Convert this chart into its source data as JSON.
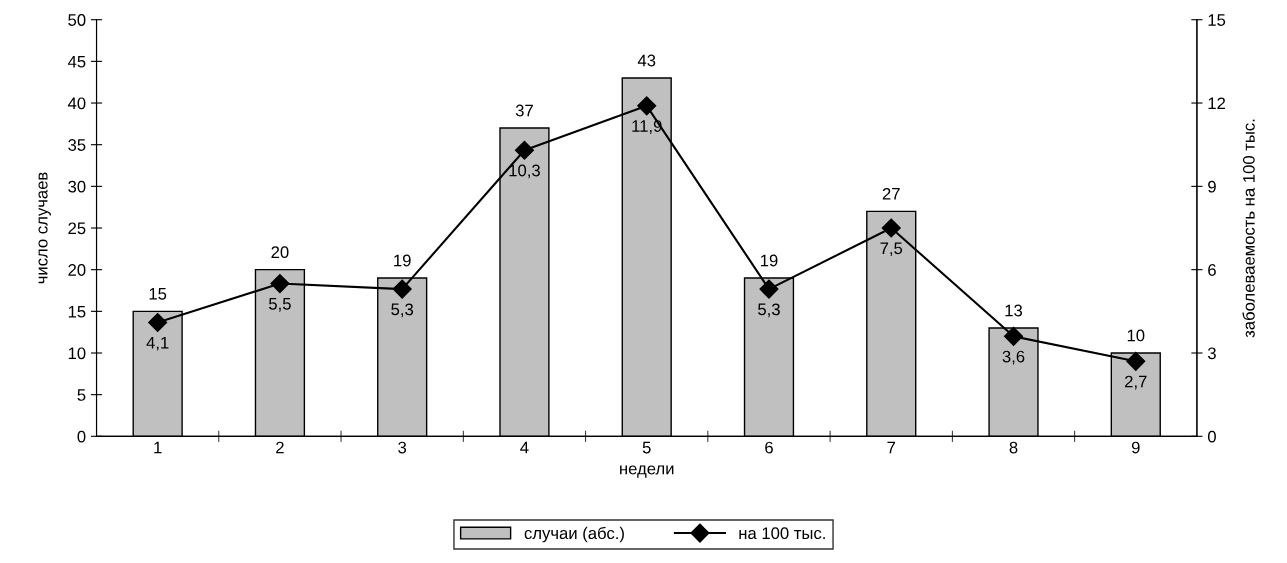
{
  "chart_data": {
    "type": "bar",
    "categories": [
      "1",
      "2",
      "3",
      "4",
      "5",
      "6",
      "7",
      "8",
      "9"
    ],
    "xlabel": "недели",
    "ylabel": "число случаев",
    "y2label": "заболеваемость на 100 тыс.",
    "series": [
      {
        "name": "случаи (абс.)",
        "color": "#c0c0c0",
        "values": [
          15,
          20,
          19,
          37,
          43,
          19,
          27,
          13,
          10
        ],
        "value_labels": [
          "15",
          "20",
          "19",
          "37",
          "43",
          "19",
          "27",
          "13",
          "10"
        ]
      },
      {
        "name": "на 100 тыс.",
        "type": "line",
        "axis": "y2",
        "color": "#000000",
        "marker": "diamond",
        "line_style": "solid",
        "values": [
          4.1,
          5.5,
          5.3,
          10.3,
          11.9,
          5.3,
          7.5,
          3.6,
          2.7
        ],
        "value_labels": [
          "4,1",
          "5,5",
          "5,3",
          "10,3",
          "11,9",
          "5,3",
          "7,5",
          "3,6",
          "2,7"
        ]
      }
    ],
    "ylim": [
      0,
      50
    ],
    "yticks": [
      0,
      5,
      10,
      15,
      20,
      25,
      30,
      35,
      40,
      45,
      50
    ],
    "y2lim": [
      0,
      15
    ],
    "y2ticks": [
      0,
      3,
      6,
      9,
      12,
      15
    ],
    "grid": false,
    "legend": "bottom"
  }
}
